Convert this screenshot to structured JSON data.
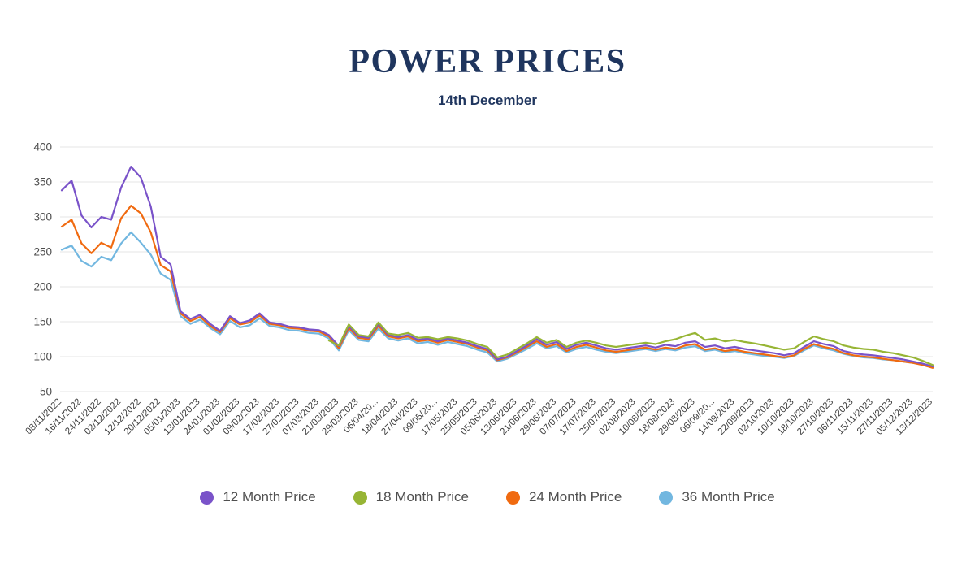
{
  "header": {
    "title": "POWER PRICES",
    "subtitle": "14th December"
  },
  "chart_data": {
    "type": "line",
    "title": "POWER PRICES",
    "subtitle": "14th December",
    "ylim": [
      50,
      400
    ],
    "yticks": [
      400,
      350,
      300,
      250,
      200,
      150,
      100,
      50
    ],
    "grid": "horizontal",
    "legend_position": "bottom",
    "points_per_category_interval": 2,
    "categories": [
      "08/11/2022",
      "16/11/2022",
      "24/11/2022",
      "02/12/2022",
      "12/12/2022",
      "20/12/2022",
      "05/01/2023",
      "13/01/2023",
      "24/01/2023",
      "01/02/2023",
      "09/02/2023",
      "17/02/2023",
      "27/02/2023",
      "07/03/2023",
      "21/03/2023",
      "29/03/2023",
      "06/04/20...",
      "18/04/2023",
      "27/04/2023",
      "09/05/20...",
      "17/05/2023",
      "25/05/2023",
      "05/06/2023",
      "13/06/2023",
      "21/06/2023",
      "29/06/2023",
      "07/07/2023",
      "17/07/2023",
      "25/07/2023",
      "02/08/2023",
      "10/08/2023",
      "18/08/2023",
      "29/08/2023",
      "06/09/20...",
      "14/09/2023",
      "22/09/2023",
      "02/10/2023",
      "10/10/2023",
      "18/10/2023",
      "27/10/2023",
      "06/11/2023",
      "15/11/2023",
      "27/11/2023",
      "05/12/2023",
      "13/12/2023"
    ],
    "series": [
      {
        "name": "12 Month Price",
        "color": "#7a53c9",
        "values": [
          338,
          352,
          302,
          285,
          300,
          296,
          342,
          372,
          356,
          315,
          243,
          232,
          165,
          154,
          160,
          147,
          137,
          158,
          148,
          152,
          162,
          149,
          147,
          143,
          142,
          139,
          138,
          131,
          115,
          144,
          129,
          127,
          147,
          131,
          128,
          131,
          124,
          126,
          122,
          126,
          123,
          120,
          115,
          111,
          96,
          100,
          108,
          116,
          125,
          117,
          121,
          111,
          117,
          120,
          116,
          112,
          110,
          112,
          114,
          116,
          113,
          117,
          115,
          120,
          122,
          114,
          116,
          112,
          114,
          111,
          109,
          107,
          105,
          102,
          105,
          114,
          122,
          118,
          115,
          108,
          105,
          103,
          102,
          100,
          98,
          96,
          93,
          90,
          86
        ]
      },
      {
        "name": "18 Month Price",
        "color": "#97b535",
        "values": [
          null,
          null,
          null,
          null,
          null,
          null,
          null,
          null,
          null,
          null,
          null,
          null,
          null,
          null,
          null,
          null,
          null,
          null,
          null,
          null,
          null,
          null,
          null,
          null,
          null,
          null,
          null,
          123,
          116,
          146,
          131,
          129,
          149,
          133,
          131,
          134,
          127,
          128,
          125,
          128,
          126,
          123,
          118,
          114,
          99,
          103,
          111,
          119,
          128,
          120,
          124,
          114,
          120,
          123,
          120,
          116,
          114,
          116,
          118,
          120,
          118,
          122,
          125,
          130,
          134,
          124,
          126,
          122,
          124,
          121,
          119,
          116,
          113,
          110,
          112,
          121,
          129,
          125,
          122,
          116,
          113,
          111,
          110,
          107,
          105,
          102,
          99,
          94,
          88
        ]
      },
      {
        "name": "24 Month Price",
        "color": "#f06a10",
        "values": [
          286,
          296,
          262,
          248,
          263,
          256,
          298,
          316,
          305,
          278,
          231,
          222,
          162,
          151,
          157,
          144,
          135,
          155,
          146,
          149,
          159,
          147,
          145,
          141,
          140,
          137,
          136,
          129,
          112,
          141,
          127,
          125,
          144,
          129,
          126,
          129,
          122,
          124,
          120,
          124,
          121,
          118,
          113,
          109,
          95,
          99,
          106,
          114,
          122,
          114,
          118,
          108,
          114,
          117,
          113,
          109,
          107,
          109,
          111,
          113,
          110,
          113,
          111,
          116,
          118,
          110,
          112,
          108,
          110,
          107,
          105,
          103,
          101,
          99,
          102,
          111,
          118,
          114,
          111,
          105,
          102,
          100,
          99,
          97,
          95,
          93,
          91,
          88,
          84
        ]
      },
      {
        "name": "36 Month Price",
        "color": "#72b7e0",
        "values": [
          253,
          259,
          237,
          229,
          243,
          238,
          262,
          278,
          263,
          246,
          219,
          210,
          158,
          147,
          153,
          141,
          132,
          151,
          142,
          145,
          155,
          144,
          142,
          138,
          137,
          134,
          133,
          126,
          109,
          138,
          124,
          122,
          140,
          126,
          123,
          126,
          119,
          121,
          117,
          121,
          118,
          115,
          110,
          106,
          93,
          97,
          104,
          111,
          119,
          112,
          115,
          106,
          111,
          114,
          110,
          107,
          105,
          107,
          109,
          111,
          108,
          111,
          109,
          113,
          115,
          108,
          110,
          106,
          108,
          105,
          103,
          101,
          100,
          98,
          101,
          109,
          116,
          112,
          109,
          104,
          101,
          99,
          98,
          96,
          95,
          93,
          91,
          89,
          85
        ]
      }
    ]
  },
  "legend": {
    "items": [
      {
        "label": "12 Month Price",
        "color": "#7a53c9"
      },
      {
        "label": "18 Month Price",
        "color": "#97b535"
      },
      {
        "label": "24 Month Price",
        "color": "#f06a10"
      },
      {
        "label": "36 Month Price",
        "color": "#72b7e0"
      }
    ]
  }
}
